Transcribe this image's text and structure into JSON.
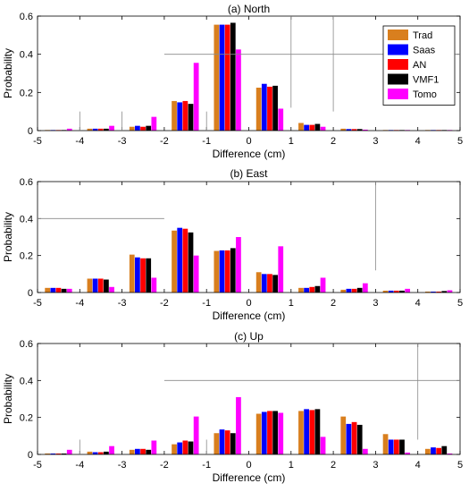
{
  "legend": {
    "entries": [
      {
        "name": "Trad",
        "color": "#D97F1E"
      },
      {
        "name": "Saas",
        "color": "#0000FF"
      },
      {
        "name": "AN",
        "color": "#FF0000"
      },
      {
        "name": "VMF1",
        "color": "#000000"
      },
      {
        "name": "Tomo",
        "color": "#FF00FF"
      }
    ],
    "placement": "top-right of panel (a)"
  },
  "chart_data": [
    {
      "type": "bar",
      "title": "(a) North",
      "xlabel": "Difference (cm)",
      "ylabel": "Probability",
      "xlim": [
        -5,
        5
      ],
      "ylim": [
        0,
        0.6
      ],
      "xticks": [
        "-5",
        "-4",
        "-3",
        "-2",
        "-1",
        "0",
        "1",
        "2",
        "3",
        "4",
        "5"
      ],
      "yticks": [
        "0",
        "0.2",
        "0.4",
        "0.6"
      ],
      "bin_centers": [
        -4.5,
        -3.5,
        -2.5,
        -1.5,
        -0.5,
        0.5,
        1.5,
        2.5,
        3.5,
        4.5
      ],
      "series": [
        {
          "name": "Trad",
          "values": [
            0.003,
            0.01,
            0.02,
            0.155,
            0.555,
            0.225,
            0.04,
            0.01,
            0.003,
            0.003
          ]
        },
        {
          "name": "Saas",
          "values": [
            0.003,
            0.01,
            0.025,
            0.148,
            0.555,
            0.245,
            0.03,
            0.008,
            0.003,
            0.003
          ]
        },
        {
          "name": "AN",
          "values": [
            0.003,
            0.01,
            0.02,
            0.155,
            0.555,
            0.23,
            0.03,
            0.008,
            0.003,
            0.003
          ]
        },
        {
          "name": "VMF1",
          "values": [
            0.003,
            0.01,
            0.025,
            0.14,
            0.565,
            0.235,
            0.035,
            0.008,
            0.003,
            0.003
          ]
        },
        {
          "name": "Tomo",
          "values": [
            0.01,
            0.025,
            0.072,
            0.355,
            0.425,
            0.115,
            0.02,
            0.005,
            0.003,
            0.003
          ]
        }
      ]
    },
    {
      "type": "bar",
      "title": "(b) East",
      "xlabel": "Difference (cm)",
      "ylabel": "Probability",
      "xlim": [
        -5,
        5
      ],
      "ylim": [
        0,
        0.6
      ],
      "xticks": [
        "-5",
        "-4",
        "-3",
        "-2",
        "-1",
        "0",
        "1",
        "2",
        "3",
        "4",
        "5"
      ],
      "yticks": [
        "0",
        "0.2",
        "0.4",
        "0.6"
      ],
      "bin_centers": [
        -4.5,
        -3.5,
        -2.5,
        -1.5,
        -0.5,
        0.5,
        1.5,
        2.5,
        3.5,
        4.5
      ],
      "series": [
        {
          "name": "Trad",
          "values": [
            0.025,
            0.075,
            0.205,
            0.335,
            0.225,
            0.11,
            0.025,
            0.015,
            0.01,
            0.005
          ]
        },
        {
          "name": "Saas",
          "values": [
            0.025,
            0.075,
            0.19,
            0.35,
            0.228,
            0.1,
            0.025,
            0.02,
            0.01,
            0.005
          ]
        },
        {
          "name": "AN",
          "values": [
            0.025,
            0.075,
            0.185,
            0.345,
            0.228,
            0.1,
            0.03,
            0.02,
            0.01,
            0.005
          ]
        },
        {
          "name": "VMF1",
          "values": [
            0.02,
            0.07,
            0.185,
            0.325,
            0.24,
            0.095,
            0.035,
            0.025,
            0.01,
            0.008
          ]
        },
        {
          "name": "Tomo",
          "values": [
            0.02,
            0.03,
            0.08,
            0.2,
            0.3,
            0.25,
            0.08,
            0.05,
            0.02,
            0.012
          ]
        }
      ]
    },
    {
      "type": "bar",
      "title": "(c) Up",
      "xlabel": "Difference (cm)",
      "ylabel": "Probability",
      "xlim": [
        -5,
        5
      ],
      "ylim": [
        0,
        0.6
      ],
      "xticks": [
        "-5",
        "-4",
        "-3",
        "-2",
        "-1",
        "0",
        "1",
        "2",
        "3",
        "4",
        "5"
      ],
      "yticks": [
        "0",
        "0.2",
        "0.4",
        "0.6"
      ],
      "bin_centers": [
        -4.5,
        -3.5,
        -2.5,
        -1.5,
        -0.5,
        0.5,
        1.5,
        2.5,
        3.5,
        4.5
      ],
      "series": [
        {
          "name": "Trad",
          "values": [
            0.005,
            0.015,
            0.025,
            0.055,
            0.115,
            0.22,
            0.235,
            0.205,
            0.11,
            0.03
          ]
        },
        {
          "name": "Saas",
          "values": [
            0.005,
            0.012,
            0.03,
            0.065,
            0.135,
            0.23,
            0.245,
            0.165,
            0.08,
            0.038
          ]
        },
        {
          "name": "AN",
          "values": [
            0.005,
            0.012,
            0.03,
            0.075,
            0.13,
            0.235,
            0.24,
            0.175,
            0.08,
            0.035
          ]
        },
        {
          "name": "VMF1",
          "values": [
            0.005,
            0.015,
            0.025,
            0.07,
            0.115,
            0.235,
            0.245,
            0.16,
            0.08,
            0.045
          ]
        },
        {
          "name": "Tomo",
          "values": [
            0.025,
            0.045,
            0.075,
            0.205,
            0.31,
            0.225,
            0.095,
            0.03,
            0.01,
            0.005
          ]
        }
      ]
    }
  ]
}
